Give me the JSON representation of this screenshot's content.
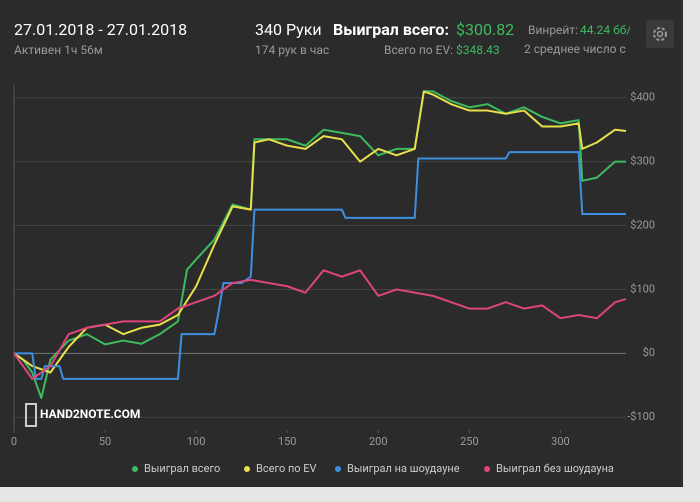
{
  "header": {
    "date_range": "27.01.2018 - 27.01.2018",
    "active": "Активен 1ч 56м",
    "hands": "340 Руки",
    "hands_per_hour": "174 рук в час",
    "won_label": "Выиграл всего:",
    "won_value": "$300.82",
    "ev_label": "Всего по EV:",
    "ev_value": "$348.43",
    "winrate_label": "Винрейт:",
    "winrate_value": "44.24 бб/",
    "avg": "2 среднее число с",
    "watermark": "HAND2NOTE.COM"
  },
  "chart_data": {
    "type": "line",
    "xlim": [
      0,
      336
    ],
    "xticks": [
      0,
      50,
      100,
      150,
      200,
      250,
      300
    ],
    "ylim": [
      -120,
      420
    ],
    "yticks": [
      {
        "value": -100,
        "label": "-$100"
      },
      {
        "value": 0,
        "label": "$0"
      },
      {
        "value": 100,
        "label": "$100"
      },
      {
        "value": 200,
        "label": "$200"
      },
      {
        "value": 300,
        "label": "$300"
      },
      {
        "value": 400,
        "label": "$400"
      }
    ],
    "grid": true,
    "series": [
      {
        "name": "Выиграл всего",
        "color": "#3dbb5f",
        "x": [
          0,
          5,
          10,
          15,
          20,
          30,
          40,
          50,
          60,
          70,
          80,
          90,
          95,
          100,
          110,
          120,
          130,
          132,
          140,
          150,
          160,
          170,
          180,
          190,
          200,
          210,
          220,
          225,
          230,
          240,
          250,
          260,
          270,
          280,
          290,
          300,
          310,
          312,
          320,
          330,
          336
        ],
        "values": [
          0,
          -10,
          -30,
          -70,
          -10,
          20,
          30,
          14,
          20,
          15,
          30,
          50,
          131,
          147,
          178,
          233,
          225,
          335,
          335,
          335,
          325,
          350,
          345,
          340,
          310,
          320,
          320,
          410,
          410,
          395,
          385,
          390,
          375,
          385,
          370,
          360,
          365,
          270,
          275,
          300,
          300
        ]
      },
      {
        "name": "Всего по EV",
        "color": "#e8e04a",
        "x": [
          0,
          10,
          20,
          30,
          40,
          50,
          60,
          70,
          80,
          90,
          100,
          110,
          120,
          130,
          132,
          140,
          150,
          160,
          170,
          180,
          190,
          200,
          210,
          220,
          225,
          230,
          240,
          250,
          260,
          270,
          280,
          290,
          300,
          310,
          312,
          320,
          330,
          336
        ],
        "values": [
          0,
          -20,
          -30,
          10,
          40,
          45,
          30,
          40,
          45,
          60,
          105,
          170,
          230,
          225,
          330,
          335,
          325,
          320,
          340,
          335,
          300,
          320,
          310,
          320,
          410,
          405,
          390,
          380,
          380,
          375,
          380,
          355,
          355,
          360,
          320,
          330,
          350,
          348
        ]
      },
      {
        "name": "Выиграл на шоудауне",
        "color": "#3d8fe0",
        "x": [
          0,
          10,
          12,
          15,
          17,
          25,
          27,
          90,
          92,
          110,
          112,
          115,
          125,
          130,
          132,
          180,
          182,
          220,
          222,
          270,
          272,
          310,
          312,
          336
        ],
        "values": [
          0,
          0,
          -40,
          -40,
          -20,
          -20,
          -40,
          -40,
          30,
          30,
          60,
          110,
          110,
          120,
          225,
          225,
          212,
          212,
          305,
          305,
          315,
          315,
          218,
          218
        ]
      },
      {
        "name": "Выиграл без шоудауна",
        "color": "#e0457a",
        "x": [
          0,
          10,
          20,
          30,
          40,
          50,
          60,
          70,
          80,
          90,
          100,
          110,
          120,
          130,
          140,
          150,
          160,
          170,
          180,
          190,
          200,
          210,
          220,
          230,
          240,
          250,
          260,
          270,
          280,
          290,
          300,
          310,
          320,
          330,
          336
        ],
        "values": [
          0,
          -40,
          -20,
          30,
          40,
          45,
          50,
          50,
          50,
          70,
          80,
          90,
          110,
          115,
          110,
          105,
          95,
          130,
          120,
          130,
          90,
          100,
          95,
          90,
          80,
          70,
          70,
          80,
          70,
          75,
          55,
          60,
          55,
          80,
          85
        ]
      }
    ]
  }
}
